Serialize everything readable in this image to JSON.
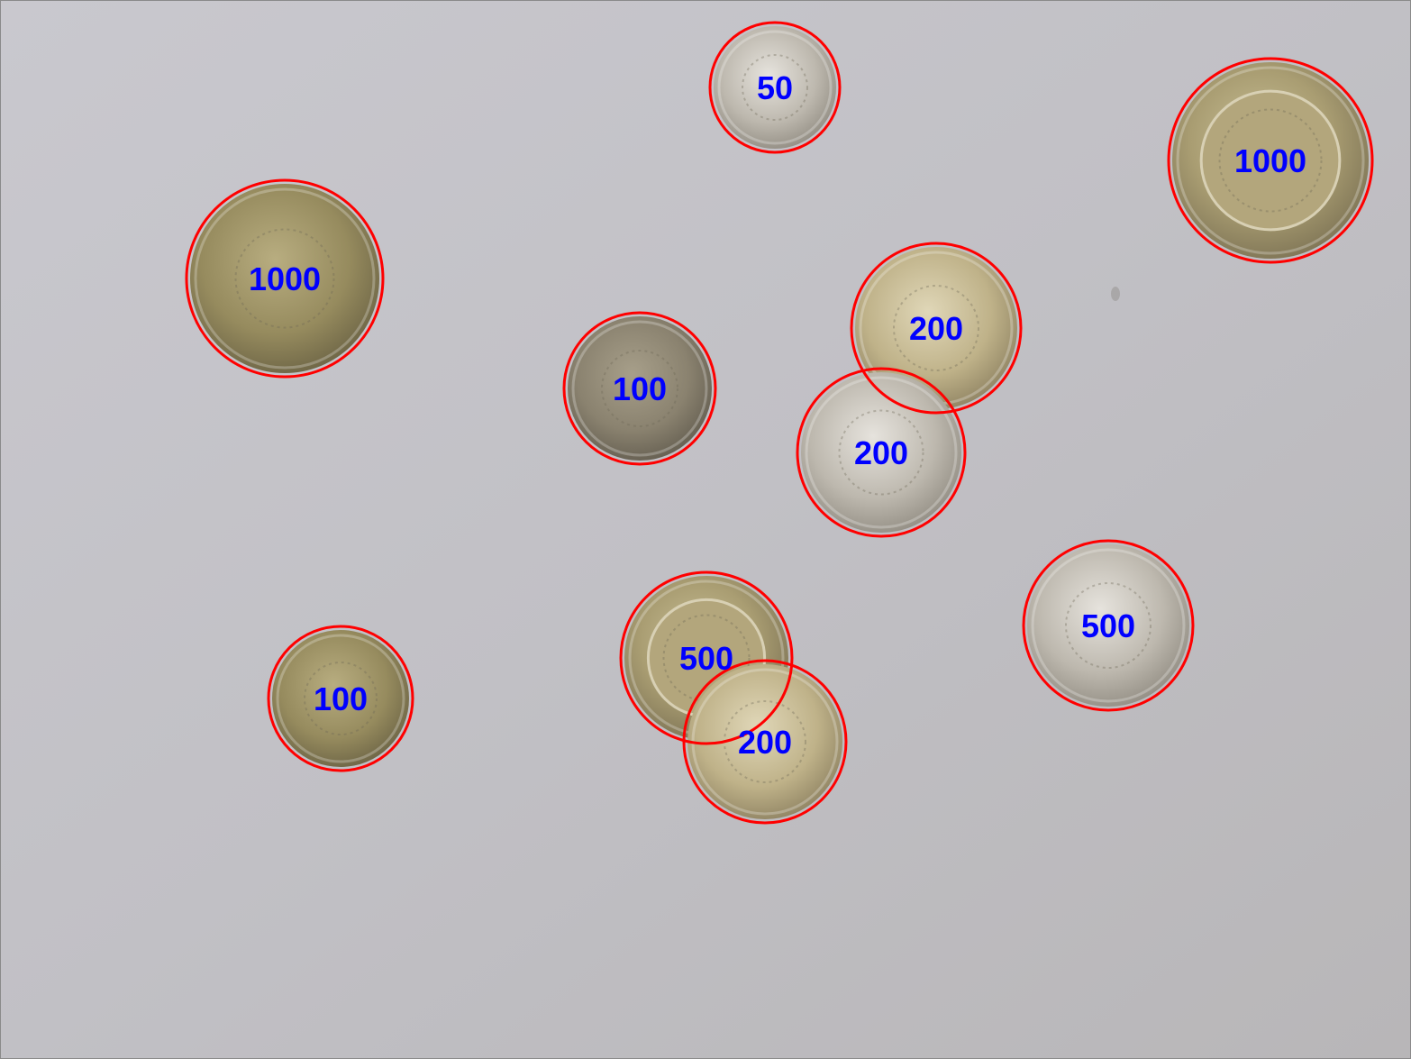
{
  "detection": {
    "circle_color": "#ff0000",
    "label_color": "#0000ff",
    "background_color": "#c2c1c6",
    "coins": [
      {
        "label": "50",
        "kind": "silver"
      },
      {
        "label": "1000",
        "kind": "bimetal"
      },
      {
        "label": "1000",
        "kind": "bronze"
      },
      {
        "label": "200",
        "kind": "gold"
      },
      {
        "label": "100",
        "kind": "dark"
      },
      {
        "label": "200",
        "kind": "silver"
      },
      {
        "label": "500",
        "kind": "bimetal"
      },
      {
        "label": "500",
        "kind": "silver"
      },
      {
        "label": "100",
        "kind": "bronze"
      },
      {
        "label": "200",
        "kind": "gold"
      }
    ]
  }
}
